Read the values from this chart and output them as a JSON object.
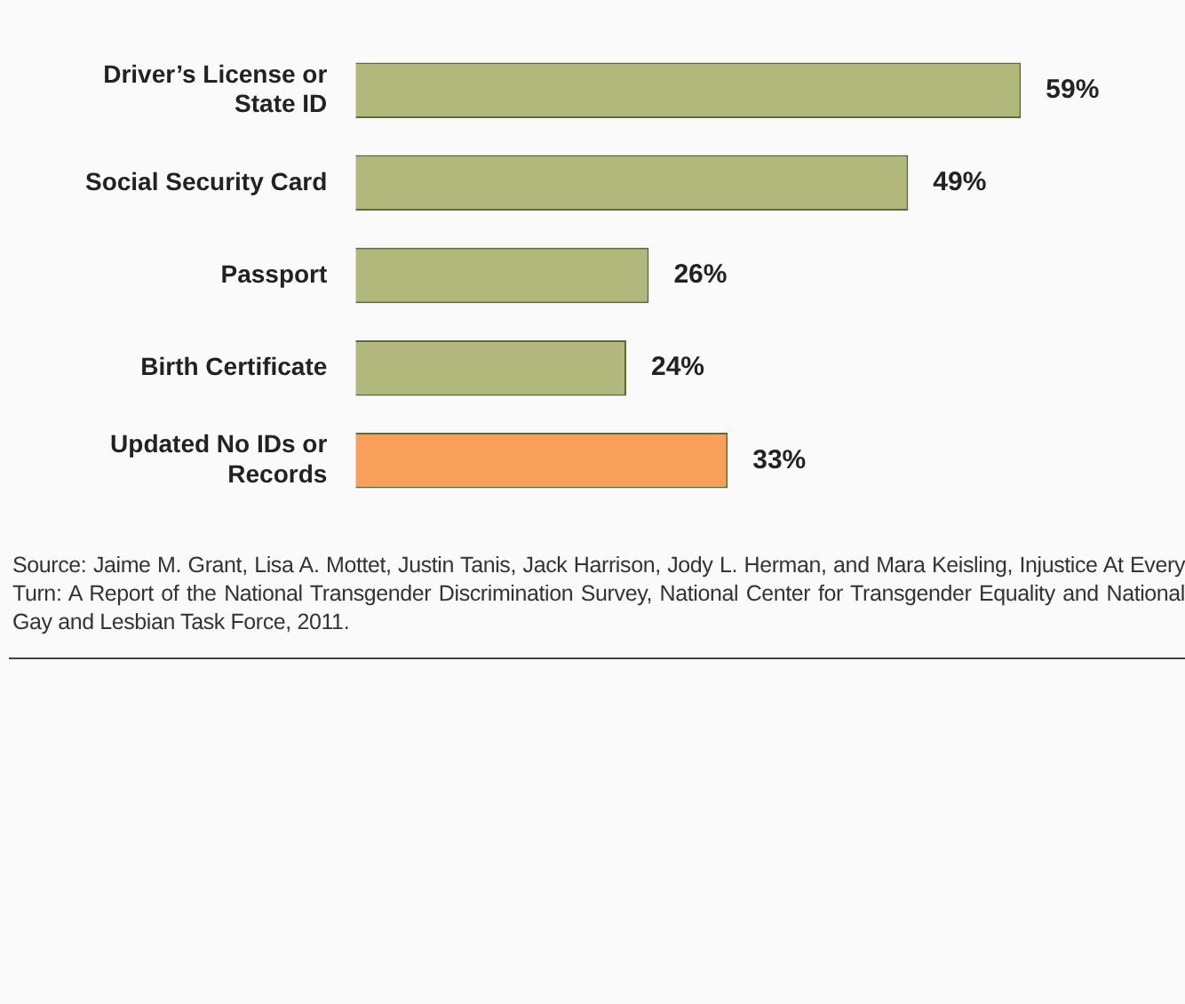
{
  "chart_data": {
    "type": "bar",
    "orientation": "horizontal",
    "categories": [
      "Driver’s License or State ID",
      "Social Security Card",
      "Passport",
      "Birth Certificate",
      "Updated No IDs or Records"
    ],
    "values": [
      59,
      49,
      26,
      24,
      33
    ],
    "colors": [
      "#b2b87c",
      "#b2b87c",
      "#b2b87c",
      "#b2b87c",
      "#f8a05a"
    ],
    "value_labels": [
      "59%",
      "49%",
      "26%",
      "24%",
      "33%"
    ],
    "legend": false,
    "annotations": [
      "Source: Jaime M. Grant, Lisa A. Mottet, Justin Tanis, Jack Harrison, Jody L. Herman, and Mara Keisling, Injustice At Every Turn: A Report of the National Transgender Discrimination Survey, National Center for Transgender Equality and National Gay and Lesbian Task Force, 2011."
    ]
  }
}
